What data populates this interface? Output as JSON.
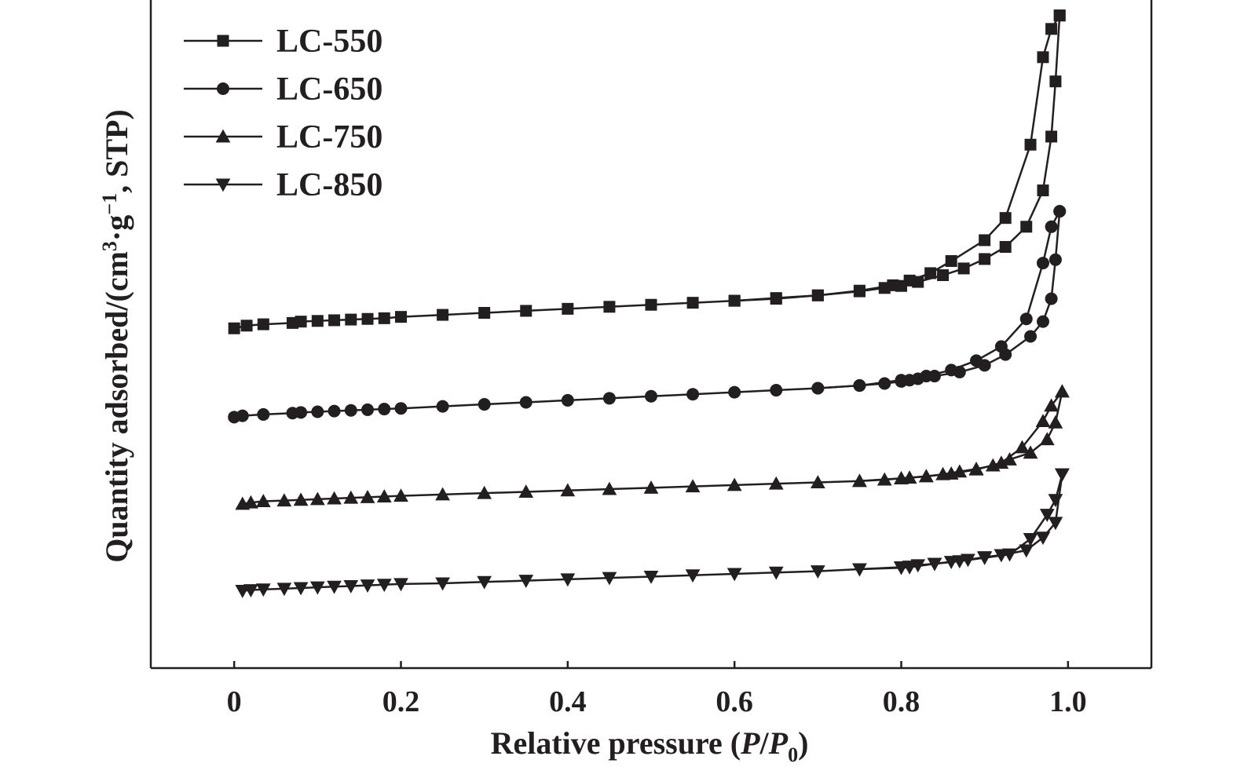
{
  "chart_data": {
    "type": "line",
    "title": "",
    "xlabel": "Relative pressure (P/P0)",
    "xlabel_parts": {
      "text": "Relative pressure (",
      "p": "P",
      "slash": "/",
      "p0": "P",
      "sub0": "0",
      "close": ")"
    },
    "ylabel": "Quantity adsorbed/(cm³·g⁻¹, STP)",
    "ylabel_parts": {
      "text1": "Quantity adsorbed/(cm",
      "sup3": "3",
      "dot": "·g",
      "supm1": "−1",
      "text2": ", STP)"
    },
    "xlim": [
      -0.1,
      1.1
    ],
    "ylim": [
      0,
      100
    ],
    "y_ticks_shown": false,
    "x_ticks": [
      0,
      0.2,
      0.4,
      0.6,
      0.8,
      1.0
    ],
    "x_tick_labels": [
      "0",
      "0.2",
      "0.4",
      "0.6",
      "0.8",
      "1.0"
    ],
    "grid": false,
    "legend_position": "top-left",
    "colors": {
      "ink": "#231f20",
      "background": "#ffffff"
    },
    "series": [
      {
        "name": "LC-550",
        "marker": "square",
        "adsorption": [
          [
            0.0,
            50.5
          ],
          [
            0.015,
            50.9
          ],
          [
            0.035,
            51.1
          ],
          [
            0.07,
            51.3
          ],
          [
            0.08,
            51.5
          ],
          [
            0.1,
            51.6
          ],
          [
            0.12,
            51.7
          ],
          [
            0.14,
            51.8
          ],
          [
            0.16,
            51.9
          ],
          [
            0.18,
            52.0
          ],
          [
            0.2,
            52.2
          ],
          [
            0.25,
            52.5
          ],
          [
            0.3,
            52.8
          ],
          [
            0.35,
            53.1
          ],
          [
            0.4,
            53.4
          ],
          [
            0.45,
            53.7
          ],
          [
            0.5,
            54.0
          ],
          [
            0.55,
            54.3
          ],
          [
            0.6,
            54.6
          ],
          [
            0.65,
            55.0
          ],
          [
            0.7,
            55.4
          ],
          [
            0.75,
            56.0
          ],
          [
            0.78,
            56.5
          ],
          [
            0.8,
            56.8
          ],
          [
            0.82,
            57.4
          ],
          [
            0.85,
            58.4
          ],
          [
            0.875,
            59.4
          ],
          [
            0.9,
            60.8
          ],
          [
            0.925,
            62.6
          ],
          [
            0.95,
            65.6
          ],
          [
            0.97,
            71.0
          ],
          [
            0.98,
            79.0
          ],
          [
            0.985,
            87.2
          ],
          [
            0.99,
            97.0
          ]
        ],
        "desorption": [
          [
            0.99,
            97.0
          ],
          [
            0.98,
            95.0
          ],
          [
            0.97,
            90.8
          ],
          [
            0.955,
            77.8
          ],
          [
            0.925,
            66.9
          ],
          [
            0.9,
            63.6
          ],
          [
            0.86,
            60.5
          ],
          [
            0.835,
            58.7
          ],
          [
            0.81,
            57.6
          ],
          [
            0.79,
            56.9
          ],
          [
            0.75,
            56.1
          ],
          [
            0.7,
            55.4
          ],
          [
            0.65,
            54.9
          ],
          [
            0.6,
            54.6
          ]
        ]
      },
      {
        "name": "LC-650",
        "marker": "circle",
        "adsorption": [
          [
            0.0,
            37.3
          ],
          [
            0.01,
            37.5
          ],
          [
            0.035,
            37.7
          ],
          [
            0.07,
            37.9
          ],
          [
            0.08,
            38.0
          ],
          [
            0.1,
            38.1
          ],
          [
            0.12,
            38.2
          ],
          [
            0.14,
            38.3
          ],
          [
            0.16,
            38.4
          ],
          [
            0.18,
            38.5
          ],
          [
            0.2,
            38.6
          ],
          [
            0.25,
            38.9
          ],
          [
            0.3,
            39.2
          ],
          [
            0.35,
            39.5
          ],
          [
            0.4,
            39.8
          ],
          [
            0.45,
            40.1
          ],
          [
            0.5,
            40.4
          ],
          [
            0.55,
            40.7
          ],
          [
            0.6,
            41.0
          ],
          [
            0.65,
            41.3
          ],
          [
            0.7,
            41.6
          ],
          [
            0.75,
            42.0
          ],
          [
            0.78,
            42.3
          ],
          [
            0.8,
            42.6
          ],
          [
            0.81,
            42.8
          ],
          [
            0.82,
            43.0
          ],
          [
            0.84,
            43.4
          ],
          [
            0.87,
            44.0
          ],
          [
            0.9,
            45.0
          ],
          [
            0.925,
            46.6
          ],
          [
            0.955,
            49.3
          ],
          [
            0.97,
            51.5
          ],
          [
            0.98,
            54.9
          ],
          [
            0.985,
            60.7
          ],
          [
            0.99,
            67.9
          ]
        ],
        "desorption": [
          [
            0.99,
            67.9
          ],
          [
            0.98,
            65.6
          ],
          [
            0.97,
            60.2
          ],
          [
            0.95,
            51.9
          ],
          [
            0.92,
            47.8
          ],
          [
            0.89,
            45.7
          ],
          [
            0.86,
            44.3
          ],
          [
            0.83,
            43.4
          ],
          [
            0.8,
            42.8
          ],
          [
            0.75,
            42.0
          ],
          [
            0.7,
            41.6
          ]
        ]
      },
      {
        "name": "LC-750",
        "marker": "triangle-up",
        "adsorption": [
          [
            0.01,
            24.4
          ],
          [
            0.02,
            24.6
          ],
          [
            0.035,
            24.8
          ],
          [
            0.06,
            24.9
          ],
          [
            0.08,
            25.0
          ],
          [
            0.1,
            25.1
          ],
          [
            0.12,
            25.2
          ],
          [
            0.14,
            25.3
          ],
          [
            0.16,
            25.4
          ],
          [
            0.18,
            25.5
          ],
          [
            0.2,
            25.6
          ],
          [
            0.25,
            25.8
          ],
          [
            0.3,
            26.0
          ],
          [
            0.35,
            26.2
          ],
          [
            0.4,
            26.4
          ],
          [
            0.45,
            26.6
          ],
          [
            0.5,
            26.8
          ],
          [
            0.55,
            27.0
          ],
          [
            0.6,
            27.2
          ],
          [
            0.65,
            27.4
          ],
          [
            0.7,
            27.6
          ],
          [
            0.75,
            27.8
          ],
          [
            0.78,
            28.0
          ],
          [
            0.8,
            28.2
          ],
          [
            0.81,
            28.3
          ],
          [
            0.83,
            28.5
          ],
          [
            0.85,
            28.8
          ],
          [
            0.87,
            29.2
          ],
          [
            0.89,
            29.6
          ],
          [
            0.91,
            30.1
          ],
          [
            0.93,
            31.0
          ],
          [
            0.955,
            32.0
          ],
          [
            0.975,
            34.0
          ],
          [
            0.985,
            36.5
          ],
          [
            0.993,
            41.1
          ]
        ],
        "desorption": [
          [
            0.993,
            41.1
          ],
          [
            0.98,
            39.0
          ],
          [
            0.97,
            36.7
          ],
          [
            0.945,
            32.8
          ],
          [
            0.92,
            30.5
          ],
          [
            0.89,
            29.5
          ],
          [
            0.86,
            28.9
          ],
          [
            0.83,
            28.5
          ],
          [
            0.8,
            28.2
          ],
          [
            0.75,
            27.8
          ]
        ]
      },
      {
        "name": "LC-850",
        "marker": "triangle-down",
        "adsorption": [
          [
            0.01,
            11.5
          ],
          [
            0.02,
            11.6
          ],
          [
            0.035,
            11.7
          ],
          [
            0.06,
            11.8
          ],
          [
            0.08,
            11.9
          ],
          [
            0.1,
            12.0
          ],
          [
            0.12,
            12.1
          ],
          [
            0.14,
            12.2
          ],
          [
            0.16,
            12.3
          ],
          [
            0.18,
            12.4
          ],
          [
            0.2,
            12.5
          ],
          [
            0.25,
            12.6
          ],
          [
            0.3,
            12.8
          ],
          [
            0.35,
            13.0
          ],
          [
            0.4,
            13.2
          ],
          [
            0.45,
            13.4
          ],
          [
            0.5,
            13.6
          ],
          [
            0.55,
            13.8
          ],
          [
            0.6,
            14.0
          ],
          [
            0.65,
            14.2
          ],
          [
            0.7,
            14.4
          ],
          [
            0.75,
            14.7
          ],
          [
            0.8,
            15.0
          ],
          [
            0.81,
            15.1
          ],
          [
            0.82,
            15.3
          ],
          [
            0.84,
            15.5
          ],
          [
            0.86,
            15.8
          ],
          [
            0.88,
            16.1
          ],
          [
            0.9,
            16.5
          ],
          [
            0.92,
            16.8
          ],
          [
            0.95,
            17.5
          ],
          [
            0.97,
            19.4
          ],
          [
            0.985,
            21.6
          ],
          [
            0.993,
            28.8
          ]
        ],
        "desorption": [
          [
            0.993,
            28.8
          ],
          [
            0.985,
            25.0
          ],
          [
            0.975,
            22.8
          ],
          [
            0.955,
            19.2
          ],
          [
            0.93,
            16.9
          ],
          [
            0.9,
            16.4
          ],
          [
            0.87,
            15.9
          ],
          [
            0.84,
            15.5
          ],
          [
            0.81,
            15.0
          ],
          [
            0.8,
            14.9
          ],
          [
            0.75,
            14.7
          ]
        ]
      }
    ]
  }
}
